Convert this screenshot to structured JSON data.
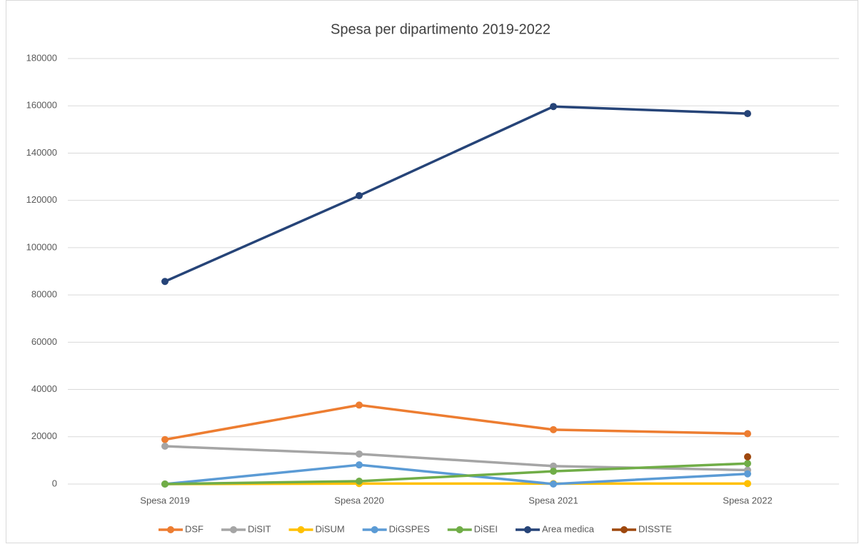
{
  "chart_data": {
    "type": "line",
    "title": "Spesa per dipartimento 2019-2022",
    "categories": [
      "Spesa 2019",
      "Spesa 2020",
      "Spesa 2021",
      "Spesa 2022"
    ],
    "series": [
      {
        "name": "DSF",
        "color": "#ED7D31",
        "values": [
          18800,
          33400,
          23000,
          21300
        ]
      },
      {
        "name": "DiSIT",
        "color": "#A5A5A5",
        "values": [
          16000,
          12700,
          7600,
          5900
        ]
      },
      {
        "name": "DiSUM",
        "color": "#FFC000",
        "values": [
          0,
          200,
          200,
          200
        ]
      },
      {
        "name": "DiGSPES",
        "color": "#5B9BD5",
        "values": [
          0,
          8100,
          0,
          4300
        ]
      },
      {
        "name": "DiSEI",
        "color": "#70AD47",
        "values": [
          0,
          1200,
          5400,
          8700
        ]
      },
      {
        "name": "Area medica",
        "color": "#264478",
        "values": [
          85700,
          122000,
          159700,
          156700
        ]
      },
      {
        "name": "DISSTE",
        "color": "#9E480E",
        "values": [
          null,
          null,
          null,
          11500
        ]
      }
    ],
    "ylim": [
      0,
      180000
    ],
    "yticks": [
      0,
      20000,
      40000,
      60000,
      80000,
      100000,
      120000,
      140000,
      160000,
      180000
    ],
    "grid": true,
    "legend": "bottom"
  }
}
